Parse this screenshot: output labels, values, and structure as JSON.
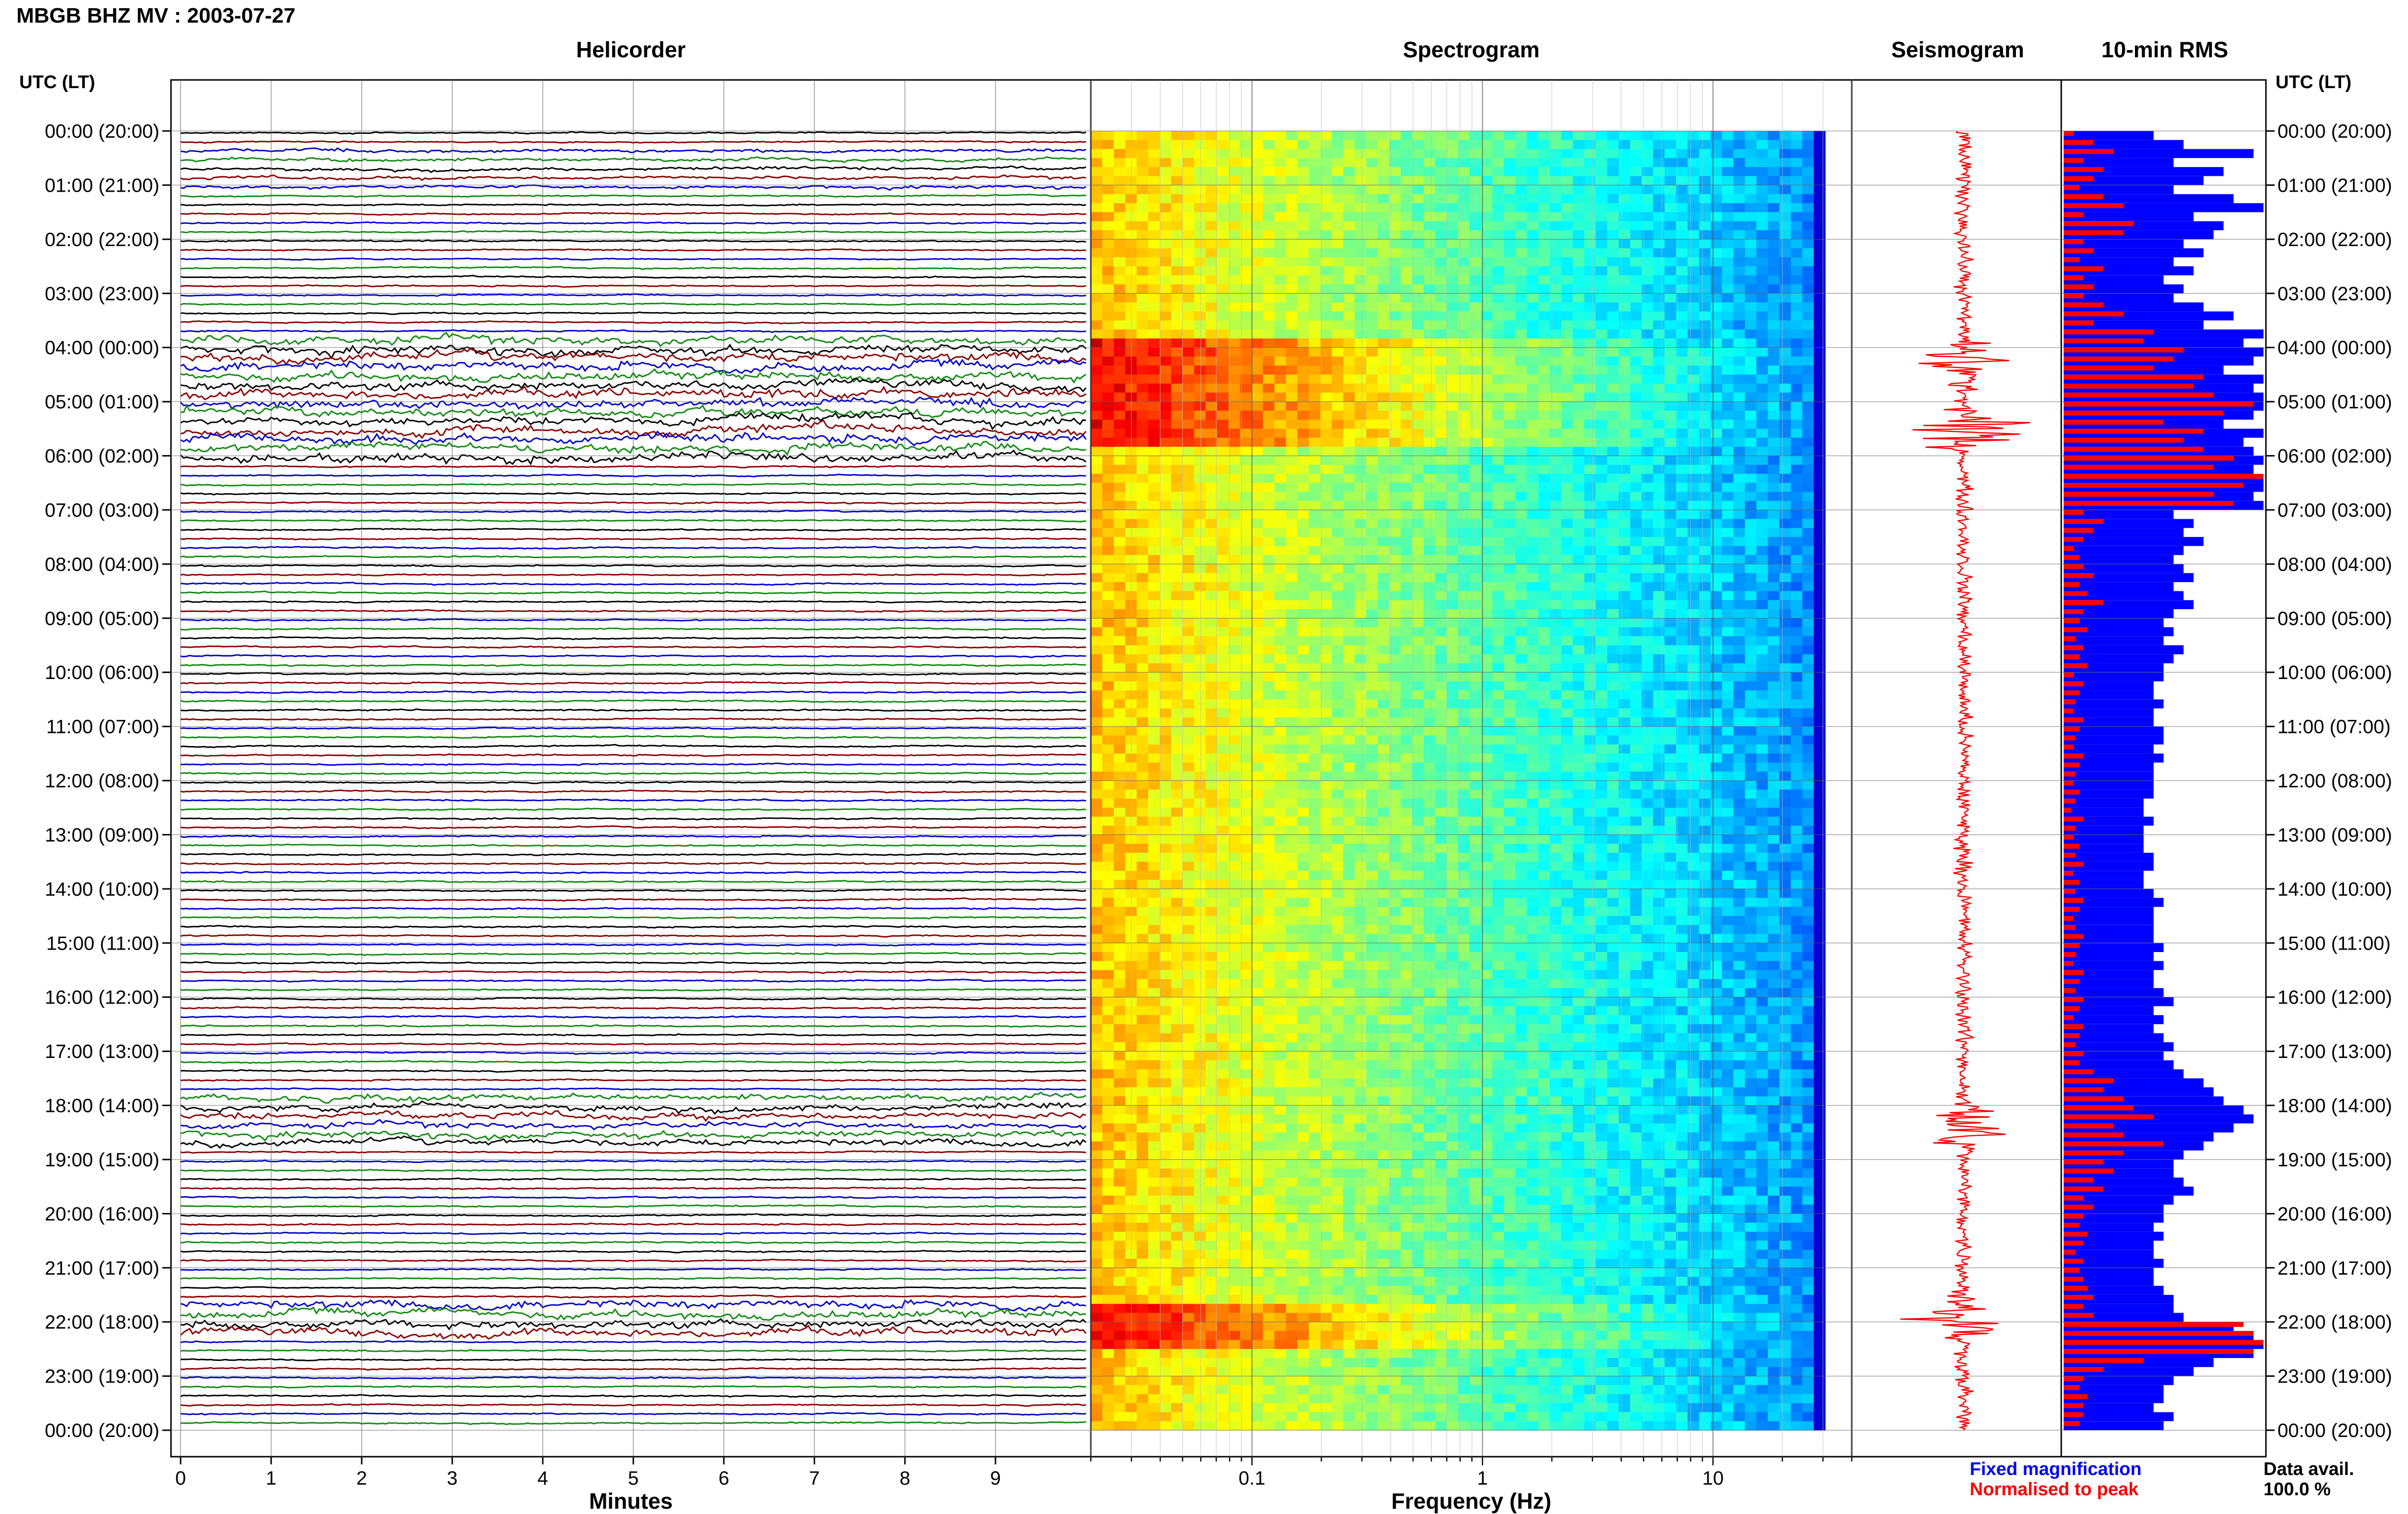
{
  "header": {
    "title": "MBGB BHZ MV : 2003-07-27"
  },
  "panels": {
    "helicorder": "Helicorder",
    "spectrogram": "Spectrogram",
    "seismogram": "Seismogram",
    "rms": "10-min RMS"
  },
  "axis_headers": {
    "left": "UTC (LT)",
    "right": "UTC (LT)"
  },
  "row_labels": [
    "00:00 (20:00)",
    "01:00 (21:00)",
    "02:00 (22:00)",
    "03:00 (23:00)",
    "04:00 (00:00)",
    "05:00 (01:00)",
    "06:00 (02:00)",
    "07:00 (03:00)",
    "08:00 (04:00)",
    "09:00 (05:00)",
    "10:00 (06:00)",
    "11:00 (07:00)",
    "12:00 (08:00)",
    "13:00 (09:00)",
    "14:00 (10:00)",
    "15:00 (11:00)",
    "16:00 (12:00)",
    "17:00 (13:00)",
    "18:00 (14:00)",
    "19:00 (15:00)",
    "20:00 (16:00)",
    "21:00 (17:00)",
    "22:00 (18:00)",
    "23:00 (19:00)",
    "00:00 (20:00)"
  ],
  "helicorder_xlabel": "Minutes",
  "spectrogram_xlabel": "Frequency (Hz)",
  "legend": {
    "fixed": "Fixed magnification",
    "normalised": "Normalised to peak",
    "data_avail_label": "Data avail.",
    "data_avail_value": "100.0 %"
  },
  "colors": {
    "trace_cycle": [
      "#000000",
      "#8b0000",
      "#0000cd",
      "#138a13"
    ],
    "rms_fixed": "#0000ff",
    "rms_normalised": "#ff0000",
    "seismogram": "#ff0000",
    "spectrogram_colormap": "jet"
  },
  "chart_data": [
    {
      "type": "line",
      "name": "helicorder",
      "x_axis": {
        "label": "Minutes",
        "ticks": [
          0,
          1,
          2,
          3,
          4,
          5,
          6,
          7,
          8,
          9
        ],
        "range": [
          0,
          10
        ]
      },
      "y_axis": {
        "range_hours": [
          0,
          24
        ]
      },
      "trace_interval_minutes": 10,
      "traces_per_hour": 6,
      "total_traces": 144,
      "grid": true
    },
    {
      "type": "heatmap",
      "name": "spectrogram",
      "x_axis": {
        "label": "Frequency (Hz)",
        "scale": "log",
        "ticks": [
          0.1,
          1,
          10
        ],
        "range": [
          0.02,
          40
        ]
      },
      "y_axis": {
        "range_hours": [
          0,
          24
        ]
      },
      "colormap": "jet",
      "high_energy_hours": [
        4,
        4.5,
        5,
        5.5,
        21.8,
        22.1
      ],
      "grid": true
    },
    {
      "type": "line",
      "name": "seismogram",
      "y_axis": {
        "range_hours": [
          0,
          24
        ]
      },
      "bursts_hours": [
        4.3,
        5.5,
        18.4,
        21.9
      ]
    },
    {
      "type": "bar",
      "name": "10-min RMS",
      "orientation": "horizontal",
      "bin_minutes": 10,
      "y_axis": {
        "range_hours": [
          0,
          24
        ]
      },
      "series": [
        {
          "name": "Fixed magnification",
          "color": "#0000ff",
          "values": [
            0.45,
            0.6,
            0.95,
            0.55,
            0.8,
            0.7,
            0.55,
            0.85,
            1.0,
            0.65,
            0.8,
            0.75,
            0.6,
            0.7,
            0.55,
            0.65,
            0.5,
            0.6,
            0.55,
            0.7,
            0.85,
            0.7,
            1.0,
            0.9,
            1.0,
            0.95,
            0.8,
            1.0,
            0.95,
            1.0,
            1.0,
            0.95,
            0.8,
            1.0,
            0.9,
            0.95,
            1.0,
            0.95,
            1.0,
            1.0,
            0.95,
            1.0,
            0.55,
            0.65,
            0.6,
            0.7,
            0.6,
            0.55,
            0.6,
            0.65,
            0.55,
            0.6,
            0.65,
            0.55,
            0.5,
            0.55,
            0.5,
            0.6,
            0.55,
            0.5,
            0.5,
            0.45,
            0.45,
            0.5,
            0.45,
            0.45,
            0.5,
            0.5,
            0.45,
            0.5,
            0.45,
            0.45,
            0.45,
            0.45,
            0.4,
            0.4,
            0.45,
            0.4,
            0.4,
            0.4,
            0.45,
            0.45,
            0.4,
            0.4,
            0.45,
            0.5,
            0.45,
            0.45,
            0.45,
            0.45,
            0.5,
            0.45,
            0.5,
            0.45,
            0.45,
            0.5,
            0.55,
            0.45,
            0.5,
            0.45,
            0.5,
            0.55,
            0.5,
            0.55,
            0.6,
            0.7,
            0.75,
            0.8,
            0.9,
            0.95,
            0.85,
            0.75,
            0.7,
            0.6,
            0.55,
            0.55,
            0.6,
            0.65,
            0.55,
            0.5,
            0.5,
            0.45,
            0.5,
            0.45,
            0.45,
            0.5,
            0.45,
            0.45,
            0.5,
            0.55,
            0.55,
            0.6,
            0.85,
            0.95,
            1.0,
            0.95,
            0.75,
            0.65,
            0.55,
            0.5,
            0.5,
            0.45,
            0.55,
            0.5
          ]
        },
        {
          "name": "Normalised to peak",
          "color": "#ff0000",
          "values": [
            0.05,
            0.15,
            0.25,
            0.1,
            0.2,
            0.15,
            0.08,
            0.2,
            0.3,
            0.1,
            0.35,
            0.3,
            0.1,
            0.15,
            0.08,
            0.2,
            0.1,
            0.15,
            0.1,
            0.2,
            0.3,
            0.15,
            0.45,
            0.4,
            0.6,
            0.55,
            0.45,
            0.7,
            0.65,
            0.75,
            0.95,
            0.8,
            0.5,
            0.7,
            0.6,
            0.7,
            0.85,
            0.75,
            1.0,
            0.9,
            0.75,
            0.85,
            0.1,
            0.2,
            0.15,
            0.1,
            0.05,
            0.08,
            0.1,
            0.15,
            0.08,
            0.12,
            0.2,
            0.1,
            0.08,
            0.12,
            0.06,
            0.1,
            0.08,
            0.12,
            0.05,
            0.1,
            0.08,
            0.06,
            0.05,
            0.1,
            0.08,
            0.06,
            0.05,
            0.1,
            0.08,
            0.06,
            0.05,
            0.08,
            0.06,
            0.04,
            0.1,
            0.06,
            0.05,
            0.08,
            0.06,
            0.1,
            0.05,
            0.08,
            0.06,
            0.1,
            0.08,
            0.05,
            0.06,
            0.1,
            0.08,
            0.06,
            0.05,
            0.1,
            0.08,
            0.06,
            0.1,
            0.08,
            0.05,
            0.1,
            0.08,
            0.06,
            0.1,
            0.08,
            0.15,
            0.25,
            0.2,
            0.3,
            0.35,
            0.45,
            0.25,
            0.3,
            0.5,
            0.3,
            0.2,
            0.25,
            0.15,
            0.2,
            0.1,
            0.15,
            0.1,
            0.08,
            0.12,
            0.1,
            0.06,
            0.1,
            0.08,
            0.1,
            0.12,
            0.15,
            0.1,
            0.15,
            0.9,
            0.95,
            1.0,
            0.95,
            0.4,
            0.2,
            0.1,
            0.08,
            0.12,
            0.1,
            0.1,
            0.08
          ]
        }
      ]
    }
  ]
}
